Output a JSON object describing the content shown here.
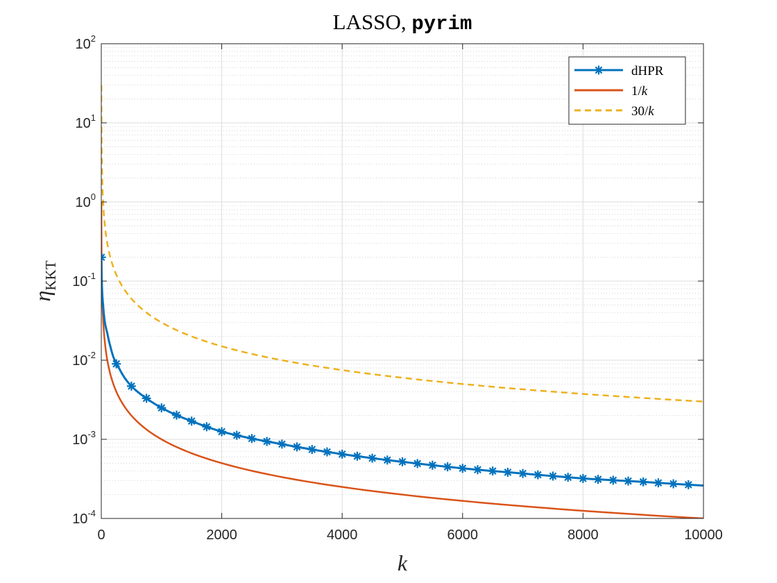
{
  "chart_data": {
    "type": "line",
    "title": "LASSO, ",
    "title_code": "pyrim",
    "xlabel": "k",
    "ylabel": "η",
    "ylabel_subscript": "KKT",
    "xscale": "linear",
    "yscale": "log",
    "xlim": [
      0,
      10000
    ],
    "ylim": [
      0.0001,
      100
    ],
    "grid": true,
    "minor_grid_y": true,
    "legend_position": "top-right",
    "x_ticks": [
      0,
      2000,
      4000,
      6000,
      8000,
      10000
    ],
    "x_tick_labels": [
      "0",
      "2000",
      "4000",
      "6000",
      "8000",
      "10000"
    ],
    "y_ticks": [
      {
        "base": "10",
        "exp": "-4",
        "value": 0.0001
      },
      {
        "base": "10",
        "exp": "-3",
        "value": 0.001
      },
      {
        "base": "10",
        "exp": "-2",
        "value": 0.01
      },
      {
        "base": "10",
        "exp": "-1",
        "value": 0.1
      },
      {
        "base": "10",
        "exp": "0",
        "value": 1
      },
      {
        "base": "10",
        "exp": "1",
        "value": 10
      },
      {
        "base": "10",
        "exp": "2",
        "value": 100
      }
    ],
    "series": [
      {
        "name": "dHPR",
        "legend_text": "dHPR",
        "color": "#0072BD",
        "style": "solid",
        "marker": "asterisk",
        "x": [
          1,
          10,
          30,
          60,
          100,
          150,
          200,
          250,
          300,
          400,
          500,
          750,
          1000,
          1500,
          2000,
          3000,
          4000,
          5000,
          6000,
          7000,
          8000,
          9000,
          10000
        ],
        "y": [
          0.2,
          0.09,
          0.05,
          0.03,
          0.022,
          0.015,
          0.011,
          0.009,
          0.0078,
          0.0058,
          0.0047,
          0.0033,
          0.0025,
          0.0017,
          0.00125,
          0.00087,
          0.00065,
          0.00052,
          0.00043,
          0.00037,
          0.00032,
          0.00029,
          0.00026
        ]
      },
      {
        "name": "1/k",
        "legend_text": "1/",
        "legend_italic": "k",
        "color": "#D95319",
        "style": "solid",
        "formula": "1/k",
        "x_range": [
          1,
          10000
        ]
      },
      {
        "name": "30/k",
        "legend_text": "30/",
        "legend_italic": "k",
        "color": "#EDB120",
        "style": "dashed",
        "formula": "30/k",
        "x_range": [
          1,
          10000
        ]
      }
    ],
    "dhpr_markers": {
      "x": [
        1,
        250,
        500,
        750,
        1000,
        1250,
        1500,
        1750,
        2000,
        2250,
        2500,
        2750,
        3000,
        3250,
        3500,
        3750,
        4000,
        4250,
        4500,
        4750,
        5000,
        5250,
        5500,
        5750,
        6000,
        6250,
        6500,
        6750,
        7000,
        7250,
        7500,
        7750,
        8000,
        8250,
        8500,
        8750,
        9000,
        9250,
        9500,
        9750
      ]
    }
  }
}
